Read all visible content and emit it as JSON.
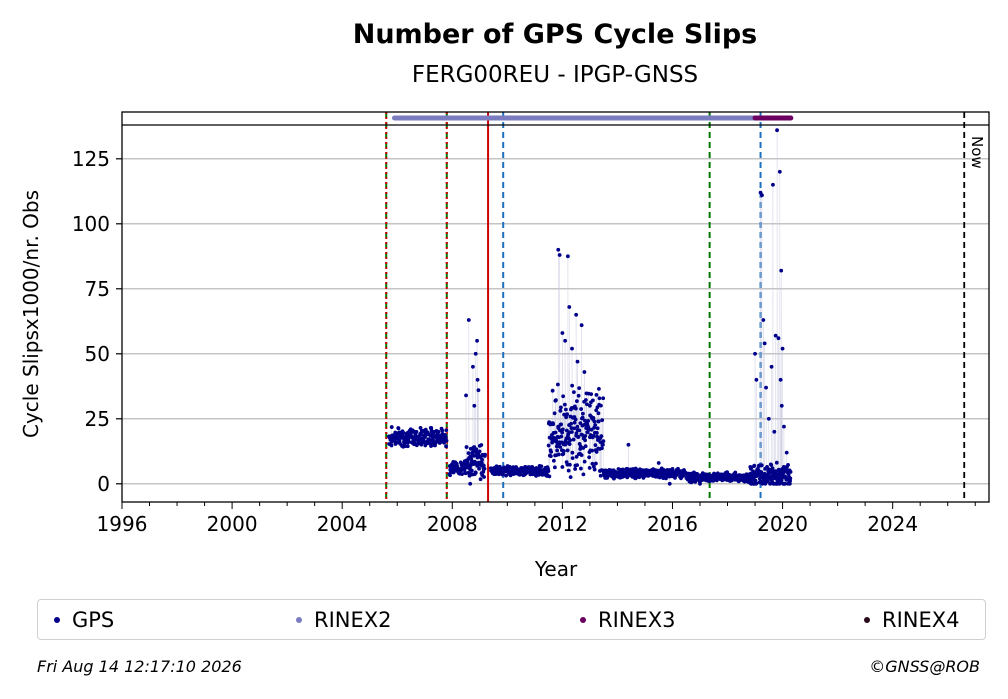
{
  "chart_data": {
    "type": "scatter",
    "title": "Number of GPS Cycle Slips",
    "subtitle": "FERG00REU - IPGP-GNSS",
    "xlabel": "Year",
    "ylabel": "Cycle Slipsx1000/nr. Obs",
    "xlim": [
      1996,
      2027.5
    ],
    "ylim": [
      -7,
      143
    ],
    "xticks": [
      1996,
      2000,
      2004,
      2008,
      2012,
      2016,
      2020,
      2024
    ],
    "yticks": [
      0,
      25,
      50,
      75,
      100,
      125
    ],
    "grid": "horizontal",
    "now_label": "Now",
    "now_x": 2026.6,
    "vertical_lines": [
      {
        "x": 2005.6,
        "color": "#007700",
        "style": "dashed"
      },
      {
        "x": 2005.6,
        "color": "#cc0000",
        "style": "dotted"
      },
      {
        "x": 2007.8,
        "color": "#007700",
        "style": "dashed"
      },
      {
        "x": 2007.8,
        "color": "#cc0000",
        "style": "dotted"
      },
      {
        "x": 2009.3,
        "color": "#cc0000",
        "style": "solid"
      },
      {
        "x": 2009.85,
        "color": "#1f6fbf",
        "style": "dashed"
      },
      {
        "x": 2017.35,
        "color": "#007700",
        "style": "dashed"
      },
      {
        "x": 2019.2,
        "color": "#1f6fbf",
        "style": "dashed"
      }
    ],
    "availability": [
      {
        "name": "RINEX2",
        "start": 2005.9,
        "end": 2019.0,
        "color": "#7b7bbf"
      },
      {
        "name": "RINEX3",
        "start": 2019.0,
        "end": 2020.3,
        "color": "#6b0060"
      }
    ],
    "series": [
      {
        "name": "GPS",
        "color": "#00008b",
        "segments": [
          {
            "start": 2005.7,
            "end": 2007.8,
            "base": 18,
            "spread": 3
          },
          {
            "start": 2007.9,
            "end": 2008.5,
            "base": 6,
            "spread": 2
          },
          {
            "start": 2008.5,
            "end": 2009.2,
            "base": 9,
            "spread": 6
          },
          {
            "start": 2009.4,
            "end": 2011.5,
            "base": 5,
            "spread": 1.5
          },
          {
            "start": 2011.5,
            "end": 2013.5,
            "base": 20,
            "spread": 14
          },
          {
            "start": 2013.5,
            "end": 2016.5,
            "base": 4,
            "spread": 1.5
          },
          {
            "start": 2016.5,
            "end": 2018.8,
            "base": 2.5,
            "spread": 1.5
          },
          {
            "start": 2018.8,
            "end": 2020.3,
            "base": 3,
            "spread": 4
          }
        ],
        "points": [
          {
            "x": 2008.6,
            "y": 63
          },
          {
            "x": 2008.75,
            "y": 45
          },
          {
            "x": 2008.8,
            "y": 30
          },
          {
            "x": 2008.85,
            "y": 50
          },
          {
            "x": 2008.9,
            "y": 55
          },
          {
            "x": 2008.92,
            "y": 40
          },
          {
            "x": 2008.95,
            "y": 36
          },
          {
            "x": 2008.5,
            "y": 34
          },
          {
            "x": 2008.65,
            "y": 0
          },
          {
            "x": 2011.85,
            "y": 90
          },
          {
            "x": 2011.9,
            "y": 88
          },
          {
            "x": 2012.2,
            "y": 87.5
          },
          {
            "x": 2012.25,
            "y": 68
          },
          {
            "x": 2012.5,
            "y": 65
          },
          {
            "x": 2012.7,
            "y": 61
          },
          {
            "x": 2012.0,
            "y": 58
          },
          {
            "x": 2012.1,
            "y": 55
          },
          {
            "x": 2012.35,
            "y": 52
          },
          {
            "x": 2012.55,
            "y": 47
          },
          {
            "x": 2012.8,
            "y": 43
          },
          {
            "x": 2013.0,
            "y": 30
          },
          {
            "x": 2013.3,
            "y": 24
          },
          {
            "x": 2014.4,
            "y": 15
          },
          {
            "x": 2015.5,
            "y": 8
          },
          {
            "x": 2019.0,
            "y": 50
          },
          {
            "x": 2019.05,
            "y": 40
          },
          {
            "x": 2019.2,
            "y": 112
          },
          {
            "x": 2019.25,
            "y": 111
          },
          {
            "x": 2019.3,
            "y": 63
          },
          {
            "x": 2019.35,
            "y": 54
          },
          {
            "x": 2019.4,
            "y": 37
          },
          {
            "x": 2019.5,
            "y": 25
          },
          {
            "x": 2019.6,
            "y": 45
          },
          {
            "x": 2019.65,
            "y": 115
          },
          {
            "x": 2019.75,
            "y": 57
          },
          {
            "x": 2019.8,
            "y": 136
          },
          {
            "x": 2019.85,
            "y": 56
          },
          {
            "x": 2019.9,
            "y": 120
          },
          {
            "x": 2019.95,
            "y": 82
          },
          {
            "x": 2020.0,
            "y": 52
          },
          {
            "x": 2019.93,
            "y": 40
          },
          {
            "x": 2019.97,
            "y": 30
          },
          {
            "x": 2019.7,
            "y": 20
          },
          {
            "x": 2020.05,
            "y": 22
          },
          {
            "x": 2020.15,
            "y": 12
          },
          {
            "x": 2017.0,
            "y": 0
          },
          {
            "x": 2015.9,
            "y": 0
          }
        ]
      }
    ],
    "legend": [
      {
        "label": "GPS",
        "color": "#00008b"
      },
      {
        "label": "RINEX2",
        "color": "#7b7bbf"
      },
      {
        "label": "RINEX3",
        "color": "#6b0060"
      },
      {
        "label": "RINEX4",
        "color": "#2a0a1a"
      }
    ]
  },
  "footer": {
    "timestamp": "Fri Aug 14 12:17:10 2026",
    "copyright": "©GNSS@ROB"
  }
}
